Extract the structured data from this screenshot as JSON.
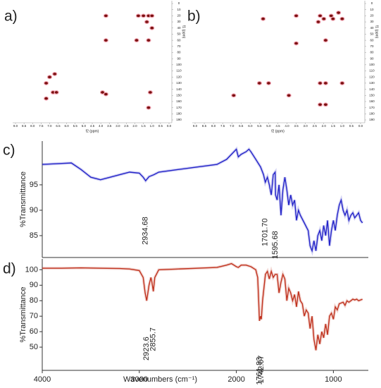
{
  "chart_data": [
    {
      "type": "scatter",
      "panel_label": "a)",
      "x_label": "f2 (ppm)",
      "y_label": "f1 (ppm)",
      "color": "#7a1010",
      "xlim": [
        9,
        0
      ],
      "ylim": [
        0,
        190
      ],
      "y_inverted": true,
      "xticks": [
        {
          "value": 9,
          "label": "9.0"
        },
        8.5,
        {
          "value": 8,
          "label": "8.0"
        },
        7.5,
        {
          "value": 7,
          "label": "7.0"
        },
        6.5,
        {
          "value": 6,
          "label": "6.0"
        },
        5.5,
        {
          "value": 5,
          "label": "5.0"
        },
        4.5,
        {
          "value": 4,
          "label": "4.0"
        },
        3.5,
        {
          "value": 3,
          "label": "3.0"
        },
        2.5,
        {
          "value": 2,
          "label": "2.0"
        },
        1.5,
        {
          "value": 1,
          "label": "1.0"
        },
        0.5,
        {
          "value": 0,
          "label": "0.0"
        }
      ],
      "yticks": [
        0,
        10,
        20,
        30,
        40,
        50,
        60,
        70,
        80,
        90,
        100,
        110,
        120,
        130,
        140,
        150,
        160,
        170,
        180,
        190
      ],
      "x": [
        3.7,
        1.8,
        1.5,
        1.2,
        1.0,
        1.3,
        1.0,
        3.7,
        1.9,
        1.2,
        7.0,
        6.7,
        7.2,
        6.8,
        6.6,
        3.9,
        3.7,
        1.1,
        1.2,
        7.2
      ],
      "values": [
        20,
        20,
        20,
        20,
        20,
        30,
        40,
        60,
        60,
        60,
        120,
        115,
        130,
        145,
        145,
        145,
        148,
        145,
        170,
        155
      ]
    },
    {
      "type": "scatter",
      "panel_label": "b)",
      "x_label": "f2 (ppm)",
      "y_label": "f1 (ppm)",
      "color": "#7a1010",
      "xlim": [
        9,
        0
      ],
      "ylim": [
        0,
        190
      ],
      "y_inverted": true,
      "xticks": [
        {
          "value": 9,
          "label": "9.0"
        },
        8.5,
        {
          "value": 8,
          "label": "8.0"
        },
        7.5,
        {
          "value": 7,
          "label": "7.0"
        },
        6.5,
        {
          "value": 6,
          "label": "6.0"
        },
        5.5,
        {
          "value": 5,
          "label": "5.0"
        },
        4.5,
        {
          "value": 4,
          "label": "4.0"
        },
        3.5,
        {
          "value": 3,
          "label": "3.0"
        },
        2.5,
        {
          "value": 2,
          "label": "2.0"
        },
        1.5,
        {
          "value": 1,
          "label": "1.0"
        },
        0.5,
        {
          "value": 0,
          "label": "0.0"
        }
      ],
      "yticks": [
        0,
        10,
        20,
        30,
        40,
        50,
        60,
        70,
        80,
        90,
        100,
        110,
        120,
        130,
        140,
        150,
        160,
        170,
        180,
        190
      ],
      "x": [
        1.2,
        1.6,
        2.2,
        2.0,
        1.5,
        1.0,
        2.3,
        3.5,
        5.3,
        3.5,
        1.9,
        5.5,
        5.0,
        1.9,
        2.2,
        1.0,
        3.9,
        6.9,
        2.2,
        1.9
      ],
      "values": [
        15,
        20,
        20,
        25,
        25,
        25,
        30,
        20,
        25,
        65,
        60,
        130,
        130,
        130,
        130,
        130,
        150,
        150,
        165,
        165
      ]
    },
    {
      "type": "line",
      "panel_label": "c)",
      "y_label": "%Transmittance",
      "color": "#2323c8",
      "xlim": [
        4000,
        640
      ],
      "ylim": [
        80.7,
        103.6
      ],
      "yticks": [
        85,
        90,
        95
      ],
      "x": [
        4000,
        3800,
        3700,
        3600,
        3500,
        3400,
        3300,
        3200,
        3100,
        3000,
        2960,
        2934.68,
        2900,
        2850,
        2800,
        2600,
        2400,
        2200,
        2100,
        2000,
        1980,
        1950,
        1900,
        1870,
        1850,
        1800,
        1750,
        1720,
        1701.7,
        1680,
        1660,
        1640,
        1620,
        1600,
        1595.68,
        1580,
        1560,
        1540,
        1520,
        1500,
        1480,
        1460,
        1440,
        1420,
        1400,
        1380,
        1360,
        1340,
        1300,
        1260,
        1240,
        1220,
        1200,
        1180,
        1160,
        1140,
        1120,
        1100,
        1080,
        1060,
        1040,
        1020,
        1000,
        980,
        960,
        940,
        920,
        900,
        880,
        860,
        840,
        820,
        800,
        780,
        760,
        740,
        720,
        700
      ],
      "values": [
        99,
        99.2,
        99.3,
        98,
        96.5,
        96,
        96.5,
        97,
        97.5,
        97.3,
        96.5,
        95.8,
        96.6,
        97,
        97.5,
        98,
        98.5,
        99,
        100,
        102,
        100.5,
        101,
        101.5,
        102,
        101.5,
        100,
        98.5,
        97,
        95.5,
        96.5,
        95,
        93,
        97,
        97.5,
        93,
        92,
        95,
        89,
        94,
        96.5,
        94,
        91,
        93,
        91,
        92,
        88,
        90,
        89,
        87.5,
        86,
        83,
        82,
        84,
        82,
        85,
        86,
        84,
        87,
        85,
        88,
        83,
        86,
        88,
        86,
        89,
        91,
        92,
        90,
        89,
        90,
        88,
        89,
        89.5,
        88.5,
        89,
        89.5,
        88,
        87.5
      ],
      "annotations": [
        {
          "value": 2934.68,
          "label": "2934.68"
        },
        {
          "value": 1701.7,
          "label": "1701.70"
        },
        {
          "value": 1595.68,
          "label": "1595.68"
        }
      ]
    },
    {
      "type": "line",
      "panel_label": "d)",
      "y_label": "%Transmittance",
      "x_label": "Wavenumbers (cm⁻¹)",
      "color": "#c0321e",
      "xlim": [
        4000,
        640
      ],
      "ylim": [
        35,
        107
      ],
      "yticks": [
        50,
        60,
        70,
        80,
        90,
        100
      ],
      "xticks": [
        4000,
        3000,
        2000,
        1000
      ],
      "x": [
        4000,
        3800,
        3600,
        3400,
        3200,
        3100,
        3000,
        2960,
        2940,
        2923.6,
        2900,
        2880,
        2870,
        2855.7,
        2840,
        2800,
        2600,
        2400,
        2200,
        2100,
        2050,
        2000,
        1980,
        1950,
        1900,
        1850,
        1800,
        1780,
        1770,
        1761.83,
        1750,
        1742.07,
        1730,
        1700,
        1680,
        1660,
        1640,
        1620,
        1600,
        1580,
        1560,
        1540,
        1520,
        1500,
        1480,
        1460,
        1440,
        1420,
        1400,
        1380,
        1360,
        1340,
        1320,
        1300,
        1280,
        1260,
        1240,
        1220,
        1200,
        1180,
        1160,
        1140,
        1120,
        1100,
        1080,
        1060,
        1040,
        1020,
        1000,
        980,
        960,
        940,
        900,
        880,
        860,
        840,
        820,
        800,
        780,
        760,
        740,
        700
      ],
      "values": [
        101,
        101,
        101.2,
        101,
        100.8,
        100.5,
        99.5,
        95,
        85,
        80,
        90,
        95,
        92,
        86,
        95,
        100,
        100.5,
        101,
        101.5,
        103,
        104,
        102,
        101.5,
        103,
        103,
        102,
        100,
        95,
        80,
        67,
        70,
        68,
        80,
        97,
        99,
        94,
        99,
        95,
        97,
        97,
        85,
        92,
        97,
        94,
        80,
        88,
        85,
        80,
        84,
        76,
        86,
        80,
        78,
        70,
        74,
        72,
        62,
        70,
        55,
        48,
        58,
        52,
        60,
        56,
        65,
        58,
        70,
        72,
        68,
        76,
        74,
        78,
        79,
        77,
        80,
        79,
        80,
        81,
        80.5,
        81,
        80,
        81
      ],
      "annotations": [
        {
          "value": 2923.6,
          "label": "2923.6"
        },
        {
          "value": 2855.7,
          "label": "2855.7"
        },
        {
          "value": 1761.83,
          "label": "1761.83"
        },
        {
          "value": 1742.07,
          "label": "1742.07"
        }
      ]
    }
  ]
}
